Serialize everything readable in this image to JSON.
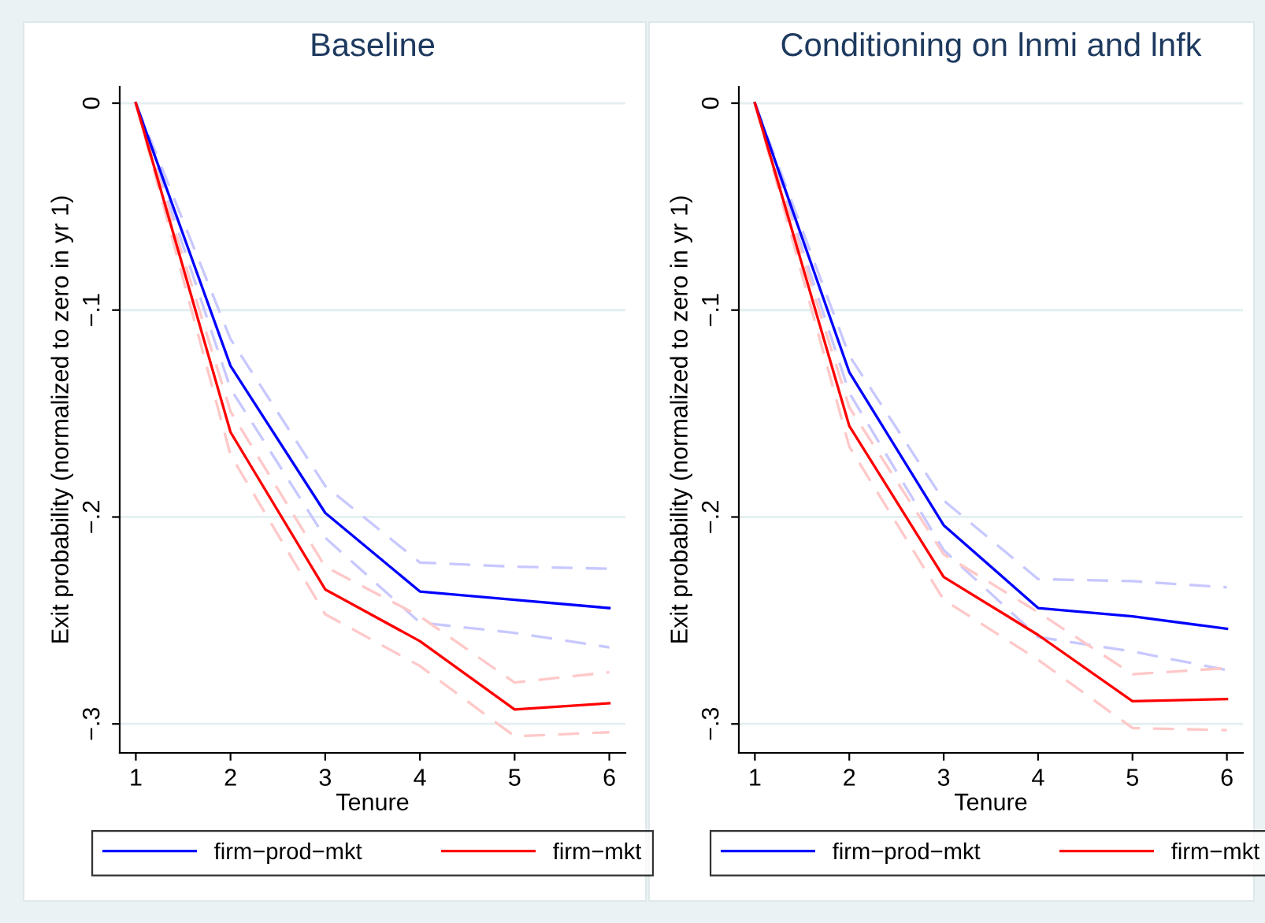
{
  "chart_data": [
    {
      "type": "line",
      "title": "Baseline",
      "xlabel": "Tenure",
      "ylabel": "Exit probability (normalized to zero in yr 1)",
      "x": [
        1,
        2,
        3,
        4,
        5,
        6
      ],
      "xlim": [
        0.83,
        6.17
      ],
      "xticks": [
        1,
        2,
        3,
        4,
        5,
        6
      ],
      "ylim": [
        -0.314,
        0.008
      ],
      "yticks": [
        {
          "value": 0,
          "label": "0"
        },
        {
          "value": -0.1,
          "label": "−.1"
        },
        {
          "value": -0.2,
          "label": "−.2"
        },
        {
          "value": -0.3,
          "label": "−.3"
        }
      ],
      "grid": "y",
      "legend": "bottom",
      "line_style": "solid",
      "marker": "none",
      "series": [
        {
          "color": "#c8c8ff",
          "line_style": "dashed",
          "values": [
            0,
            -0.138,
            -0.21,
            -0.251,
            -0.256,
            -0.263
          ]
        },
        {
          "color": "#c8c8ff",
          "line_style": "dashed",
          "values": [
            0,
            -0.114,
            -0.185,
            -0.222,
            -0.224,
            -0.225
          ]
        },
        {
          "color": "#ffc8c8",
          "line_style": "dashed",
          "values": [
            0,
            -0.17,
            -0.247,
            -0.272,
            -0.306,
            -0.304
          ]
        },
        {
          "color": "#ffc8c8",
          "line_style": "dashed",
          "values": [
            0,
            -0.149,
            -0.224,
            -0.248,
            -0.28,
            -0.275
          ]
        },
        {
          "name": "firm−prod−mkt",
          "color": "#0000ff",
          "values": [
            0,
            -0.127,
            -0.198,
            -0.236,
            -0.24,
            -0.244
          ]
        },
        {
          "name": "firm−mkt",
          "color": "#ff0000",
          "values": [
            0,
            -0.159,
            -0.235,
            -0.26,
            -0.293,
            -0.29
          ]
        }
      ]
    },
    {
      "type": "line",
      "title": "Conditioning on lnmi and lnfk",
      "xlabel": "Tenure",
      "ylabel": "Exit probability (normalized to zero in yr 1)",
      "x": [
        1,
        2,
        3,
        4,
        5,
        6
      ],
      "xlim": [
        0.83,
        6.17
      ],
      "xticks": [
        1,
        2,
        3,
        4,
        5,
        6
      ],
      "ylim": [
        -0.314,
        0.008
      ],
      "yticks": [
        {
          "value": 0,
          "label": "0"
        },
        {
          "value": -0.1,
          "label": "−.1"
        },
        {
          "value": -0.2,
          "label": "−.2"
        },
        {
          "value": -0.3,
          "label": "−.3"
        }
      ],
      "grid": "y",
      "legend": "bottom",
      "line_style": "solid",
      "marker": "none",
      "series": [
        {
          "color": "#c8c8ff",
          "line_style": "dashed",
          "values": [
            0,
            -0.14,
            -0.216,
            -0.258,
            -0.265,
            -0.274
          ]
        },
        {
          "color": "#c8c8ff",
          "line_style": "dashed",
          "values": [
            0,
            -0.122,
            -0.192,
            -0.23,
            -0.231,
            -0.234
          ]
        },
        {
          "color": "#ffc8c8",
          "line_style": "dashed",
          "values": [
            0,
            -0.166,
            -0.24,
            -0.269,
            -0.302,
            -0.303
          ]
        },
        {
          "color": "#ffc8c8",
          "line_style": "dashed",
          "values": [
            0,
            -0.147,
            -0.218,
            -0.246,
            -0.276,
            -0.273
          ]
        },
        {
          "name": "firm−prod−mkt",
          "color": "#0000ff",
          "values": [
            0,
            -0.13,
            -0.204,
            -0.244,
            -0.248,
            -0.254
          ]
        },
        {
          "name": "firm−mkt",
          "color": "#ff0000",
          "values": [
            0,
            -0.156,
            -0.229,
            -0.257,
            -0.289,
            -0.288
          ]
        }
      ]
    }
  ]
}
